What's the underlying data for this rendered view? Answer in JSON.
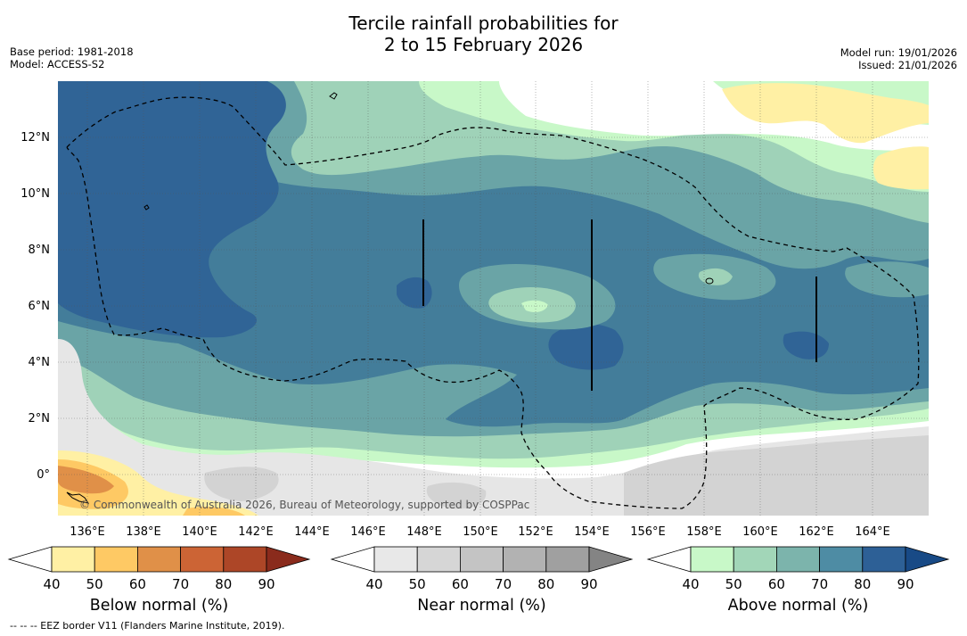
{
  "title": {
    "line1": "Tercile rainfall probabilities for",
    "line2": "2 to 15 February 2026"
  },
  "meta_left": {
    "base_period": "Base period: 1981-2018",
    "model": "Model: ACCESS-S2"
  },
  "meta_right": {
    "model_run": "Model run: 19/01/2026",
    "issued": "Issued: 21/01/2026"
  },
  "map": {
    "copyright": "© Commonwealth of Australia 2026, Bureau of Meteorology, supported by COSPPac",
    "lon_labels": [
      "136°E",
      "138°E",
      "140°E",
      "142°E",
      "144°E",
      "146°E",
      "148°E",
      "150°E",
      "152°E",
      "154°E",
      "156°E",
      "158°E",
      "160°E",
      "162°E",
      "164°E"
    ],
    "lat_labels": [
      "12°N",
      "10°N",
      "8°N",
      "6°N",
      "4°N",
      "2°N",
      "0°"
    ]
  },
  "colorbars": [
    {
      "label": "Below normal (%)",
      "ticks": [
        "40",
        "50",
        "60",
        "70",
        "80",
        "90"
      ],
      "colors": [
        "#fff0a4",
        "#fec964",
        "#e09048",
        "#cc6435",
        "#ad4627"
      ],
      "low": "#ffffff",
      "high": "#8a2b1c"
    },
    {
      "label": "Near normal (%)",
      "ticks": [
        "40",
        "50",
        "60",
        "70",
        "80",
        "90"
      ],
      "colors": [
        "#e8e8e8",
        "#d6d6d6",
        "#c4c4c4",
        "#b2b2b2",
        "#a0a0a0"
      ],
      "low": "#ffffff",
      "high": "#848484"
    },
    {
      "label": "Above normal (%)",
      "ticks": [
        "40",
        "50",
        "60",
        "70",
        "80",
        "90"
      ],
      "colors": [
        "#c8f8c8",
        "#a2d6b8",
        "#7cb4ac",
        "#4e8ca4",
        "#2d6096"
      ],
      "low": "#ffffff",
      "high": "#184a86"
    }
  ],
  "colors": {
    "band40": "#c8f8c8",
    "band50": "#9fd2b8",
    "band60": "#6aa4a6",
    "band70": "#437d9a",
    "band80": "#306496",
    "near40": "#e6e6e6",
    "near50": "#d3d3d3",
    "below40": "#fff0a4",
    "below50": "#fec964",
    "below60": "#e09048"
  },
  "footer": "--  --  -- EEZ border V11 (Flanders Marine Institute, 2019)."
}
